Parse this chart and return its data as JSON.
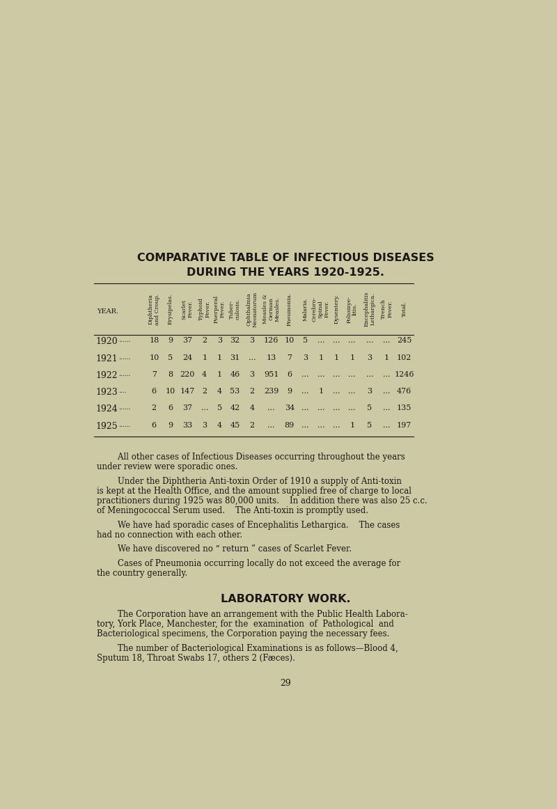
{
  "bg_color": "#cdc9a5",
  "title_line1": "COMPARATIVE TABLE OF INFECTIOUS DISEASES",
  "title_line2": "DURING THE YEARS 1920-1925.",
  "col_headers": [
    "Diphtheria\nand Croup.",
    "Erysipelas.",
    "Scarlet\nFever.",
    "Typhoid\nFever.",
    "Puerperal\nFever.",
    "Tuber-\nculosis.",
    "Ophthalmia\nNeonatorum",
    "Measles &\nGerman\nMeasles.",
    "Pneumonia.",
    "Malaria.",
    "Cerebro-\nSpinal\nFever.",
    "Dysentery.",
    "Poliomye-\nlitis.",
    "Encephalitis\nLethargica.",
    "Trench\nFever.",
    "Total."
  ],
  "years": [
    "1920",
    "1921",
    "1922",
    "1923",
    "1924",
    "1925"
  ],
  "year_dots": [
    "......",
    "......",
    "......",
    "....",
    "......",
    "......"
  ],
  "table_data": [
    [
      "18",
      "9",
      "37",
      "2",
      "3",
      "32",
      "3",
      "126",
      "10",
      "5",
      "...",
      "...",
      "...",
      "...",
      "...",
      "245"
    ],
    [
      "10",
      "5",
      "24",
      "1",
      "1",
      "31",
      "...",
      "13",
      "7",
      "3",
      "1",
      "1",
      "1",
      "3",
      "1",
      "102"
    ],
    [
      "7",
      "8",
      "220",
      "4",
      "1",
      "46",
      "3",
      "951",
      "6",
      "...",
      "...",
      "...",
      "...",
      "...",
      "...",
      "1246"
    ],
    [
      "6",
      "10",
      "147",
      "2",
      "4",
      "53",
      "2",
      "239",
      "9",
      "...",
      "1",
      "...",
      "...",
      "3",
      "...",
      "476"
    ],
    [
      "2",
      "6",
      "37",
      "...",
      "5",
      "42",
      "4",
      "...",
      "34",
      "...",
      "...",
      "...",
      "...",
      "5",
      "...",
      "135"
    ],
    [
      "6",
      "9",
      "33",
      "3",
      "4",
      "45",
      "2",
      "...",
      "89",
      "...",
      "...",
      "...",
      "1",
      "5",
      "...",
      "197"
    ]
  ],
  "paragraph1_indent": "        All other cases of Infectious Diseases occurring throughout the years",
  "paragraph1_cont": "under review were sporadic ones.",
  "paragraph2_indent": "        Under the Diphtheria Anti-toxin Order of 1910 a supply of Anti-toxin",
  "paragraph2_l2": "is kept at the Health Office, and the amount supplied free of charge to local",
  "paragraph2_l3": "practitioners during 1925 was 80,000 units.    In addition there was also 25 c.c.",
  "paragraph2_l4": "of Meningococcal Serum used.    The Anti-toxin is promptly used.",
  "paragraph3_indent": "        We have had sporadic cases of Encephalitis Lethargica.    The cases",
  "paragraph3_cont": "had no connection with each other.",
  "paragraph4_indent": "        We have discovered no “ return ” cases of Scarlet Fever.",
  "paragraph5_indent": "        Cases of Pneumonia occurring locally do not exceed the average for",
  "paragraph5_cont": "the country generally.",
  "section_header": "LABORATORY WORK.",
  "paragraph6_indent": "        The Corporation have an arrangement with the Public Health Labora-",
  "paragraph6_l2": "tory, York Place, Manchester, for the  examination  of  Pathological  and",
  "paragraph6_l3": "Bacteriological specimens, the Corporation paying the necessary fees.",
  "paragraph7_indent": "        The number of Bacteriological Examinations is as follows—Blood 4,",
  "paragraph7_cont": "Sputum 18, Throat Swabs 17, others 2 (Fæces).",
  "page_number": "29",
  "text_color": "#1a1814",
  "header_fontsize": 11.5,
  "body_fontsize": 8.5,
  "table_fontsize": 8.0,
  "col_header_fontsize": 5.8,
  "year_fontsize": 9.0
}
